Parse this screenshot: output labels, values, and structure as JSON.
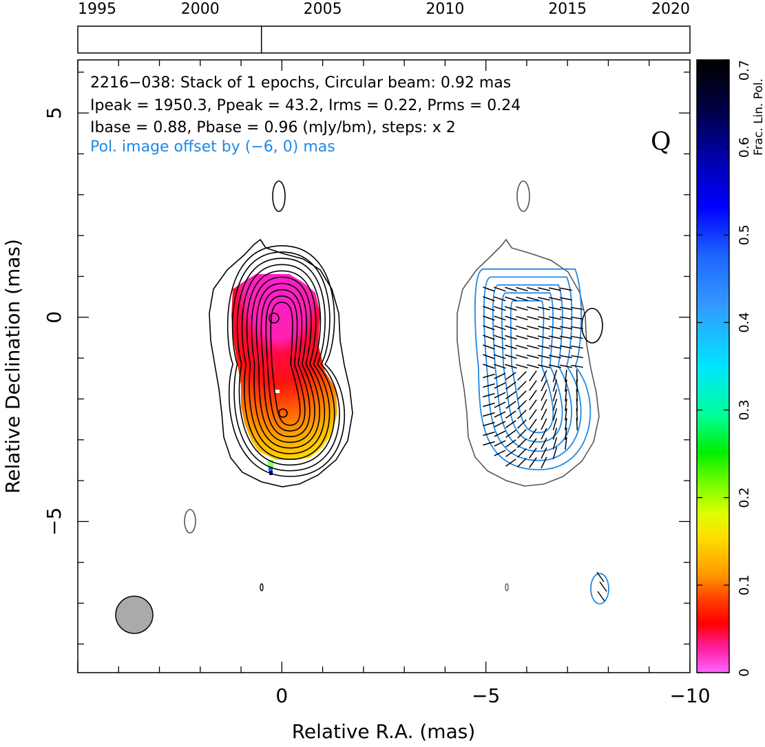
{
  "header": {
    "line1": "2216−038: Stack of 1 epochs, Circular beam: 0.92 mas",
    "line2": "Ipeak = 1950.3, Ppeak = 43.2, Irms = 0.22, Prms = 0.24",
    "line3": "Ibase = 0.88, Pbase = 0.96 (mJy/bm), steps: x 2",
    "line4": "Pol. image offset by (−6, 0) mas",
    "stokes_label": "Q"
  },
  "timeline": {
    "years": [
      "1995",
      "2000",
      "2005",
      "2010",
      "2015",
      "2020"
    ],
    "epochs": [
      2002.5
    ]
  },
  "colorbar": {
    "label": "Frac. Lin. Pol.",
    "ticks": [
      "0",
      "0.1",
      "0.2",
      "0.3",
      "0.4",
      "0.5",
      "0.6",
      "0.7"
    ]
  },
  "colors": {
    "pol_contour": "#1e88e5",
    "offset_text": "#1e88e5",
    "beam_fill": "#aaaaaa",
    "outer_contour": "#555555"
  },
  "chart_data": {
    "type": "heatmap",
    "source": "2216−038",
    "xlabel": "Relative R.A. (mas)",
    "ylabel": "Relative Declination (mas)",
    "xlim": [
      5,
      -10
    ],
    "ylim": [
      -8.7,
      6.3
    ],
    "x_ticks": [
      "0",
      "−5",
      "−10"
    ],
    "y_ticks": [
      "5",
      "0",
      "−5"
    ],
    "beam_mas": 0.92,
    "beam_center": [
      3.4,
      -7.3
    ],
    "pol_offset_mas": [
      -6,
      0
    ],
    "stokes_i_contour_levels": 11,
    "fractional_pol_range": [
      0,
      0.7
    ],
    "core": {
      "x": 0,
      "y": 0
    },
    "jet_component": {
      "x": -0.2,
      "y": -2.3
    }
  }
}
